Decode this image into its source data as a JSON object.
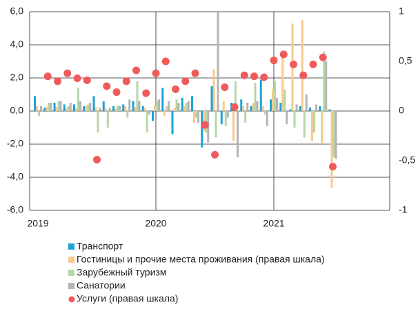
{
  "chart_data": {
    "type": "bar",
    "categories": [
      "2019",
      null,
      null,
      null,
      null,
      null,
      null,
      null,
      null,
      null,
      null,
      null,
      "2020",
      null,
      null,
      null,
      null,
      null,
      null,
      null,
      null,
      null,
      null,
      null,
      "2021",
      null,
      null,
      null,
      null,
      null,
      null,
      null,
      null,
      null,
      null,
      null
    ],
    "ylim": [
      -6,
      6
    ],
    "yticks": [
      {
        "value": -6,
        "label": "-6,0"
      },
      {
        "value": -4,
        "label": "-4,0"
      },
      {
        "value": -2,
        "label": "-2,0"
      },
      {
        "value": 0,
        "label": "0,0"
      },
      {
        "value": 2,
        "label": "2,0"
      },
      {
        "value": 4,
        "label": "4,0"
      },
      {
        "value": 6,
        "label": "6,0"
      }
    ],
    "y2lim": [
      -1,
      1
    ],
    "y2ticks": [
      -1,
      {
        "value": -0.5,
        "label": "-0,5"
      },
      0,
      {
        "value": 0.5,
        "label": "0,5"
      },
      1
    ],
    "grid": true,
    "series": [
      {
        "name": "Транспорт",
        "color": "#1ba3d8",
        "type": "bar",
        "values": [
          0.9,
          0.2,
          0.5,
          0.4,
          0.4,
          0.3,
          0.9,
          0.6,
          0.3,
          0.4,
          0.6,
          0.3,
          -0.6,
          1.4,
          -1.4,
          0.8,
          0.9,
          -2.2,
          1.5,
          -0.8,
          0.5,
          0.7,
          0.3,
          1.9,
          0.7,
          0.5,
          0.1,
          0.3,
          0.2,
          0.3,
          0.1,
          null,
          null,
          null,
          null,
          null
        ]
      },
      {
        "name": "Гостиницы и прочие места проживания (правая шкала)",
        "color": "#f8c98c",
        "type": "bar",
        "axis": "y2",
        "values": [
          0.05,
          0.04,
          0.04,
          0.03,
          0.03,
          0.05,
          0.04,
          0.03,
          0.02,
          0.05,
          0.04,
          0.03,
          0.05,
          -0.05,
          0.03,
          0.05,
          -0.12,
          -0.2,
          0.42,
          0.1,
          -0.3,
          0.05,
          0.08,
          0.05,
          0.22,
          0.6,
          0.88,
          0.92,
          -0.3,
          -0.32,
          -0.77,
          null,
          null,
          null,
          null,
          null
        ]
      },
      {
        "name": "Зарубежный туризм",
        "color": "#b5d6a6",
        "type": "bar",
        "values": [
          -0.3,
          0.5,
          0.6,
          0.3,
          1.4,
          0.4,
          -1.3,
          -1.0,
          0.3,
          -0.4,
          1.8,
          -1.3,
          0.6,
          0.3,
          0.7,
          0.5,
          -0.4,
          -1.3,
          -1.6,
          -0.9,
          1.8,
          -0.7,
          1.7,
          -0.2,
          1.8,
          1.3,
          -1.0,
          -1.6,
          -1.3,
          3.6,
          -2.8,
          null,
          null,
          null,
          null,
          null
        ]
      },
      {
        "name": "Санатории",
        "color": "#b4b4b4",
        "type": "bar",
        "values": [
          0.3,
          0.5,
          0.6,
          0.5,
          0.6,
          0.5,
          0.2,
          0.2,
          0.3,
          0.7,
          0.6,
          -0.2,
          0.7,
          0.6,
          0.5,
          0.6,
          -0.7,
          -1.9,
          6.0,
          -0.4,
          -2.8,
          0.5,
          0.6,
          -0.9,
          0.8,
          -0.8,
          0.4,
          1.0,
          0.4,
          3.0,
          -2.9,
          null,
          null,
          null,
          null,
          null
        ]
      },
      {
        "name": "Услуги (правая шкала)",
        "color": "#f05a5a",
        "type": "scatter",
        "axis": "y2",
        "values": [
          null,
          0.35,
          0.3,
          0.38,
          0.33,
          0.31,
          -0.49,
          0.25,
          0.19,
          0.3,
          0.41,
          0.18,
          0.38,
          0.5,
          0.22,
          0.3,
          0.38,
          -0.14,
          -0.44,
          0.24,
          0.04,
          0.36,
          0.35,
          0.34,
          0.51,
          0.57,
          0.47,
          0.36,
          0.47,
          0.54,
          -0.56,
          null,
          null,
          null,
          null,
          null
        ]
      }
    ]
  }
}
